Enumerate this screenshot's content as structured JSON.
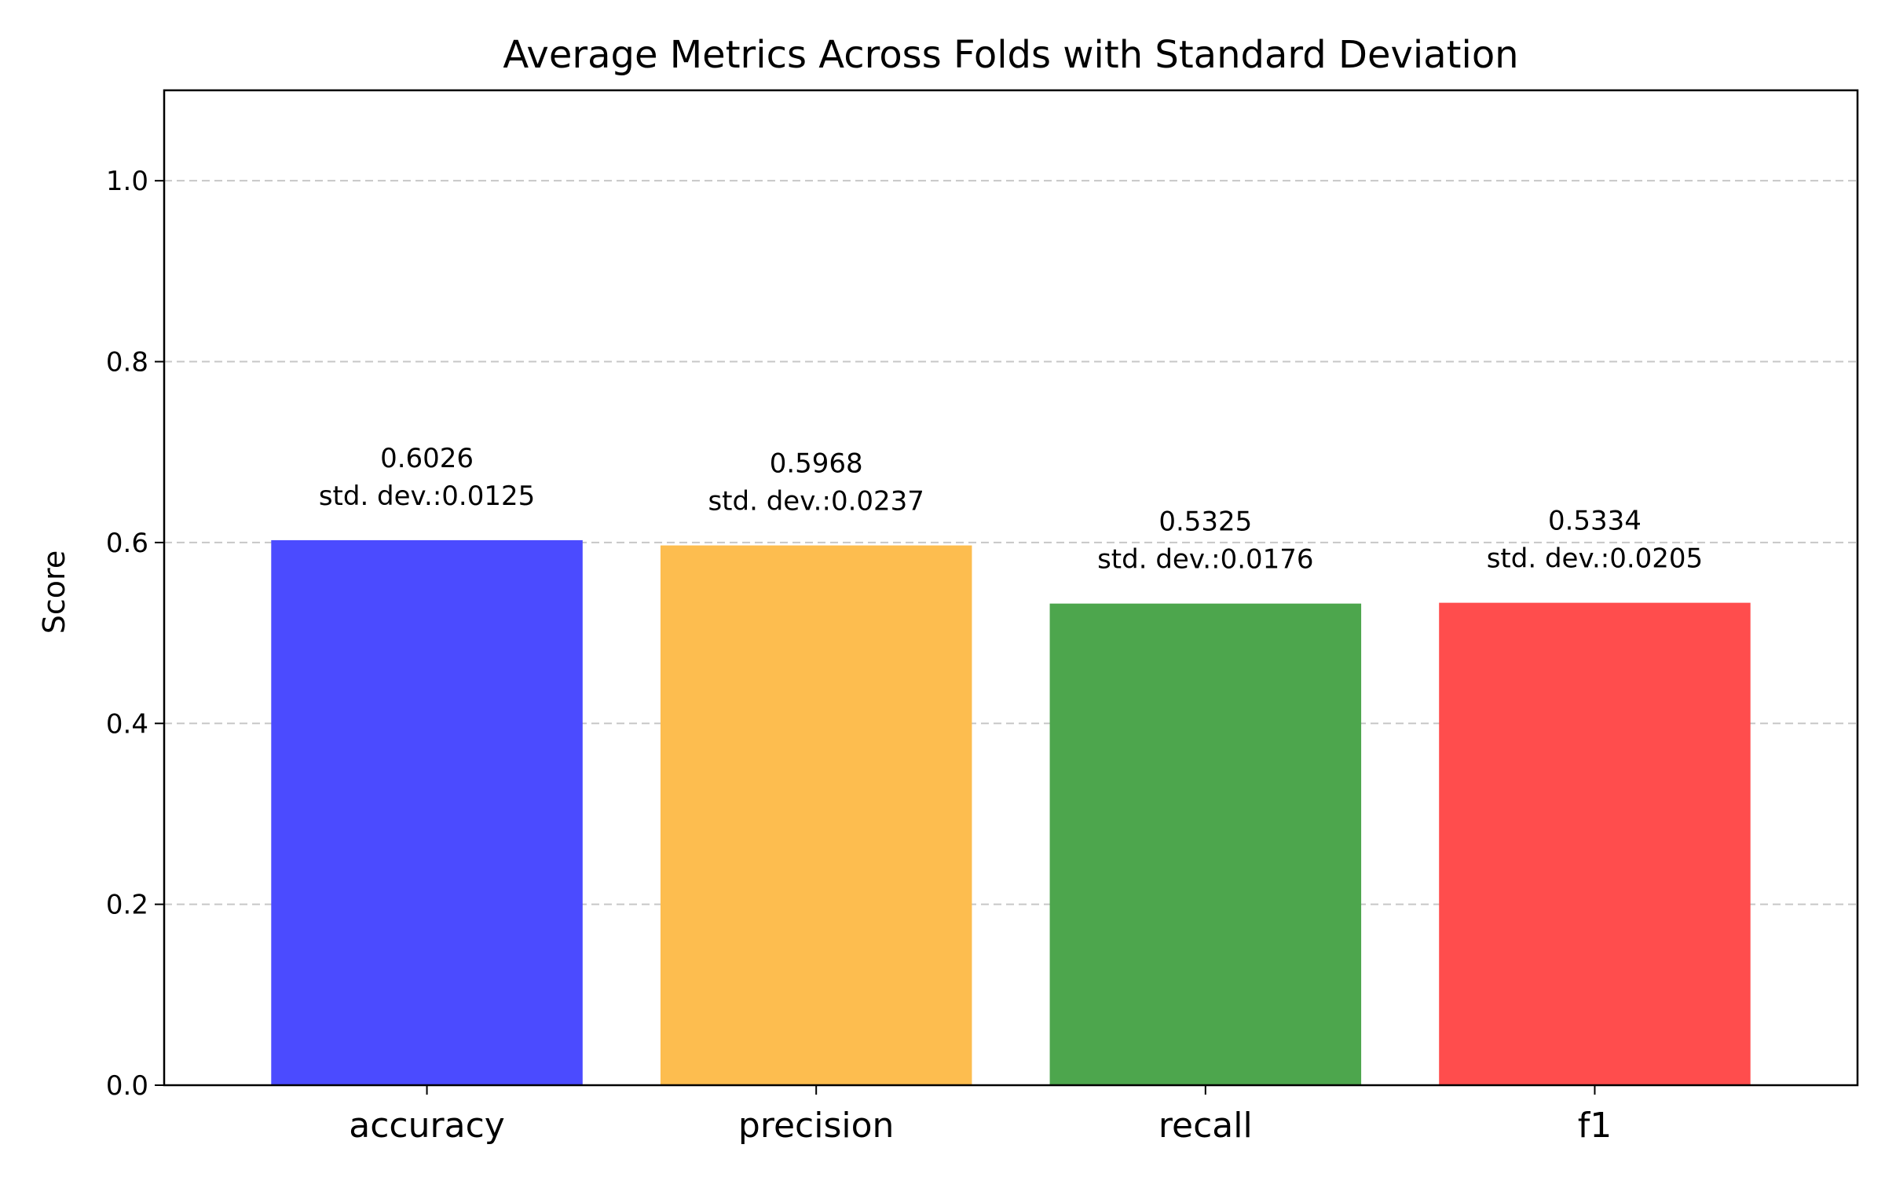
{
  "chart_data": {
    "type": "bar",
    "title": "Average Metrics Across Folds with Standard Deviation",
    "xlabel": "",
    "ylabel": "Score",
    "ylim": [
      0,
      1.1
    ],
    "yticks": [
      0.0,
      0.2,
      0.4,
      0.6,
      0.8,
      1.0
    ],
    "ytick_labels": [
      "0.0",
      "0.2",
      "0.4",
      "0.6",
      "0.8",
      "1.0"
    ],
    "grid": "y, dashed",
    "categories": [
      "accuracy",
      "precision",
      "recall",
      "f1"
    ],
    "values": [
      0.6026,
      0.5968,
      0.5325,
      0.5334
    ],
    "std_devs": [
      0.0125,
      0.0237,
      0.0176,
      0.0205
    ],
    "value_labels": [
      "0.6026",
      "0.5968",
      "0.5325",
      "0.5334"
    ],
    "std_labels": [
      "std. dev.:0.0125",
      "std. dev.:0.0237",
      "std. dev.:0.0176",
      "std. dev.:0.0205"
    ],
    "colors": [
      "#4b4bff",
      "#fdbd4f",
      "#4da64d",
      "#ff4d4d"
    ]
  }
}
